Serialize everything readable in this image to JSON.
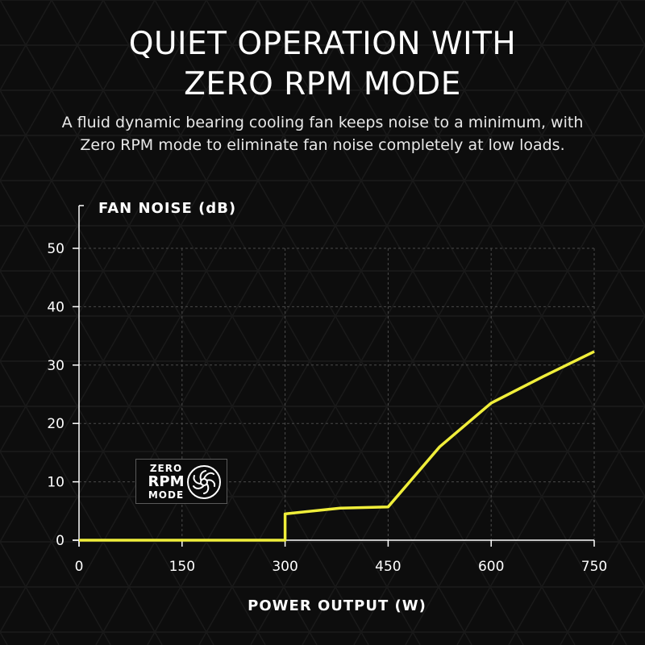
{
  "headline": {
    "line1": "QUIET OPERATION WITH",
    "line2": "ZERO RPM MODE"
  },
  "subtitle": {
    "line1": "A fluid dynamic bearing cooling fan keeps noise to a minimum, with",
    "line2": "Zero RPM mode to eliminate fan noise completely at low loads."
  },
  "badge": {
    "line1": "ZERO",
    "line2": "RPM",
    "line3": "MODE",
    "icon": "fan-icon"
  },
  "colors": {
    "background": "#0d0d0d",
    "line": "#f0ee3a",
    "grid": "#4a4a4a",
    "axis": "#ffffff"
  },
  "chart_data": {
    "type": "line",
    "xlabel": "POWER OUTPUT (W)",
    "ylabel": "FAN NOISE (dB)",
    "xlim": [
      0,
      750
    ],
    "ylim": [
      0,
      50
    ],
    "xticks": [
      0,
      150,
      300,
      450,
      600,
      750
    ],
    "yticks": [
      0,
      10,
      20,
      30,
      40,
      50
    ],
    "grid": true,
    "series": [
      {
        "x": [
          0,
          300,
          300,
          380,
          450,
          525,
          600,
          675,
          750
        ],
        "y": [
          0,
          0,
          4.5,
          5.5,
          5.7,
          16,
          23.5,
          28,
          32.3
        ]
      }
    ]
  }
}
